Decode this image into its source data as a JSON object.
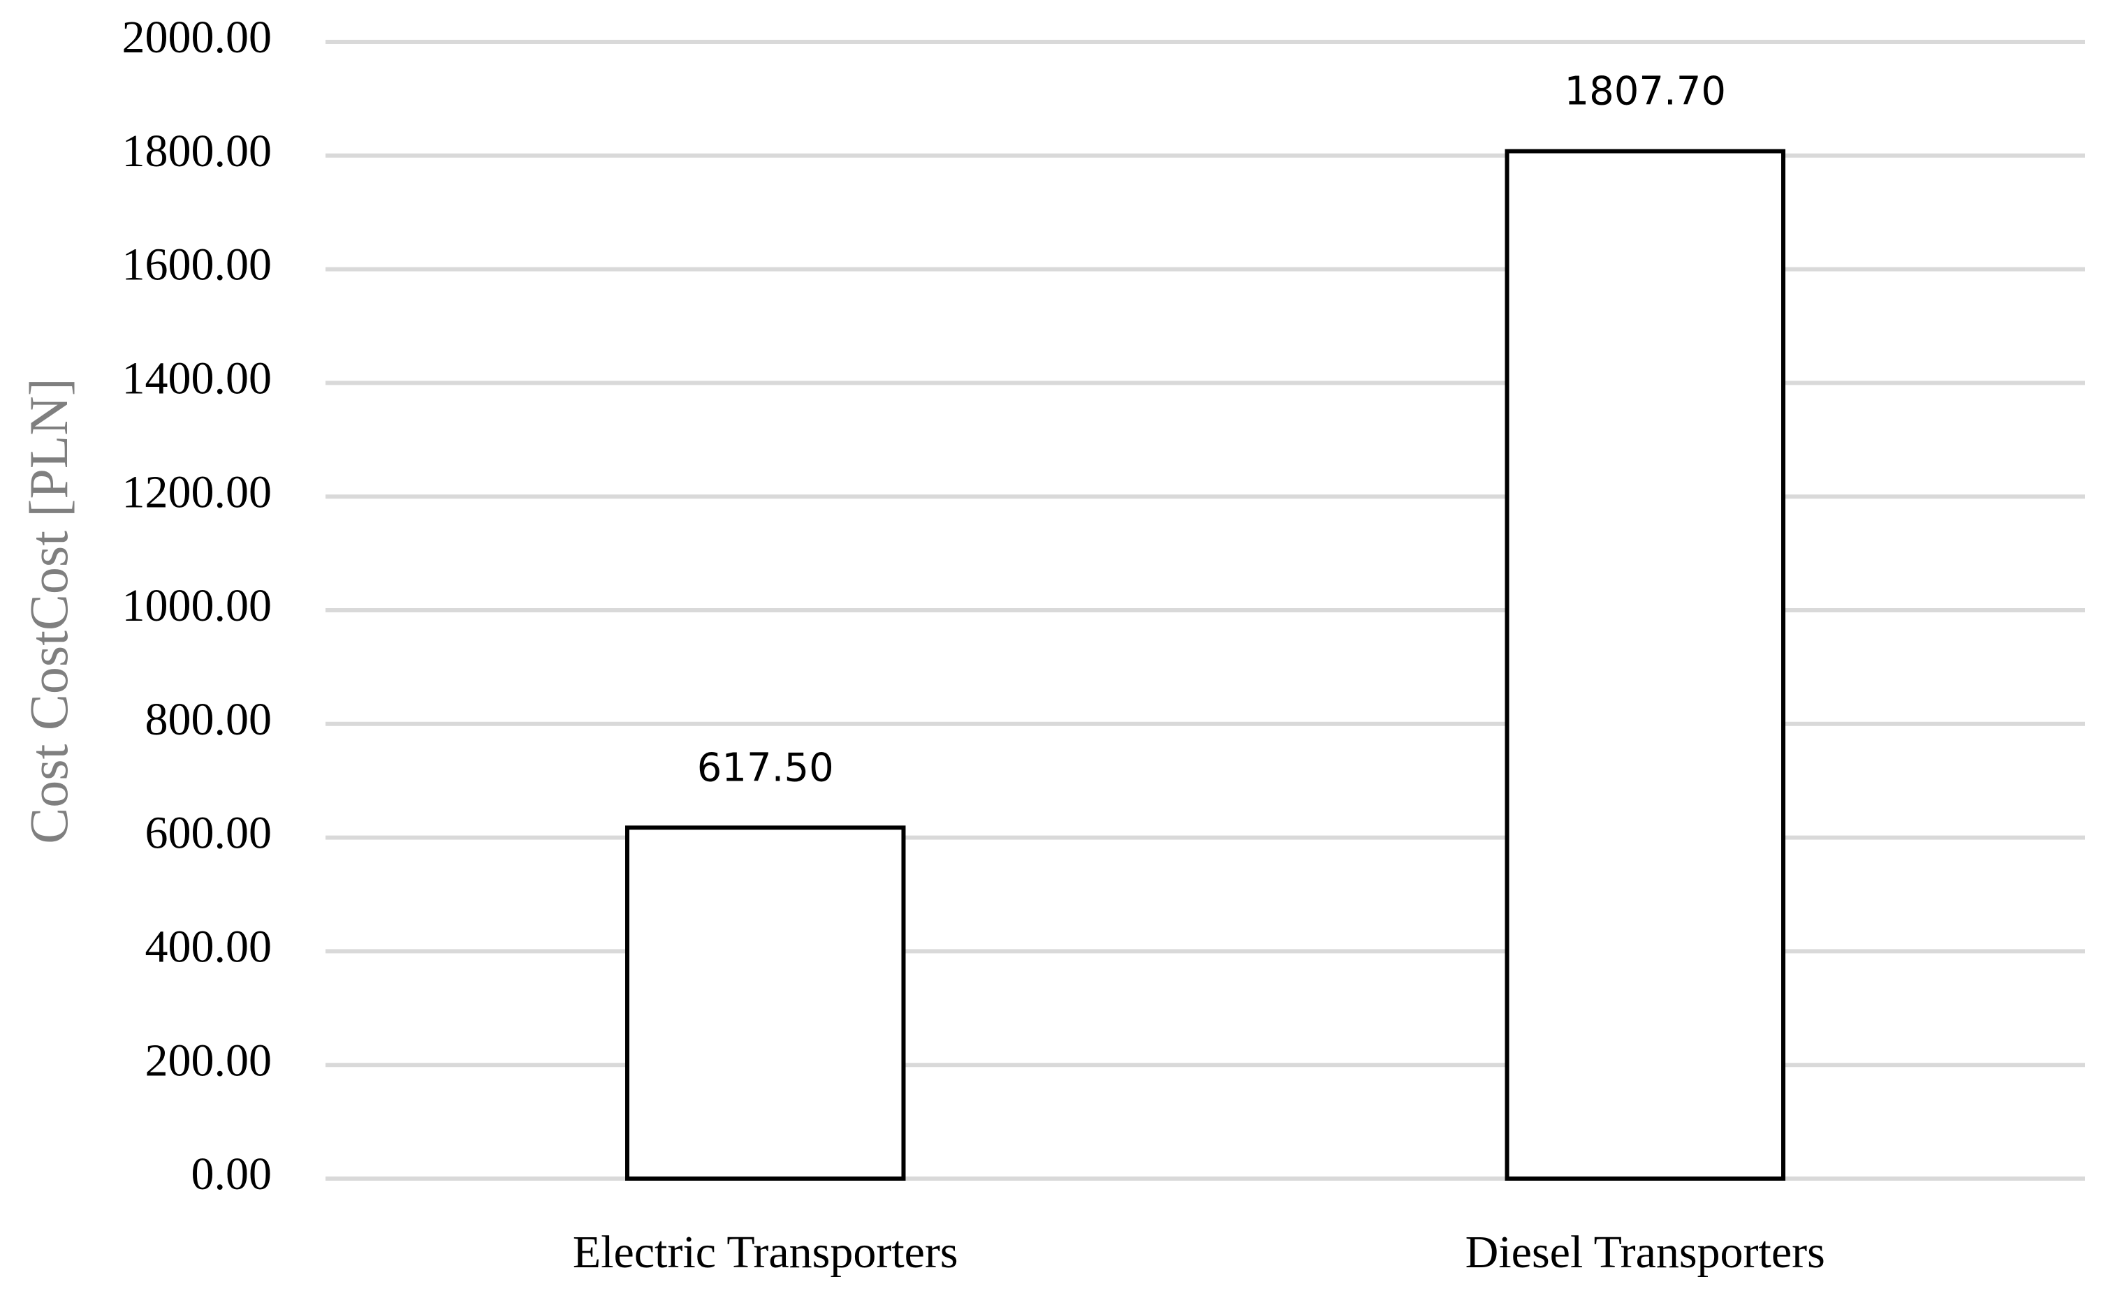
{
  "chart_data": {
    "type": "bar",
    "y_axis_label": "Cost CostCost [PLN]",
    "categories": [
      "Electric Transporters",
      "Diesel Transporters"
    ],
    "values": [
      617.5,
      1807.7
    ],
    "value_labels": [
      "617.50",
      "1807.70"
    ],
    "color": "#ffffff",
    "ylim": [
      0,
      2000
    ],
    "yticks": [
      {
        "value": 0,
        "label": "0.00"
      },
      {
        "value": 200,
        "label": "200.00"
      },
      {
        "value": 400,
        "label": "400.00"
      },
      {
        "value": 600,
        "label": "600.00"
      },
      {
        "value": 800,
        "label": "800.00"
      },
      {
        "value": 1000,
        "label": "1000.00"
      },
      {
        "value": 1200,
        "label": "1200.00"
      },
      {
        "value": 1400,
        "label": "1400.00"
      },
      {
        "value": 1600,
        "label": "1600.00"
      },
      {
        "value": 1800,
        "label": "1800.00"
      },
      {
        "value": 2000,
        "label": "2000.00"
      }
    ],
    "grid": true
  }
}
